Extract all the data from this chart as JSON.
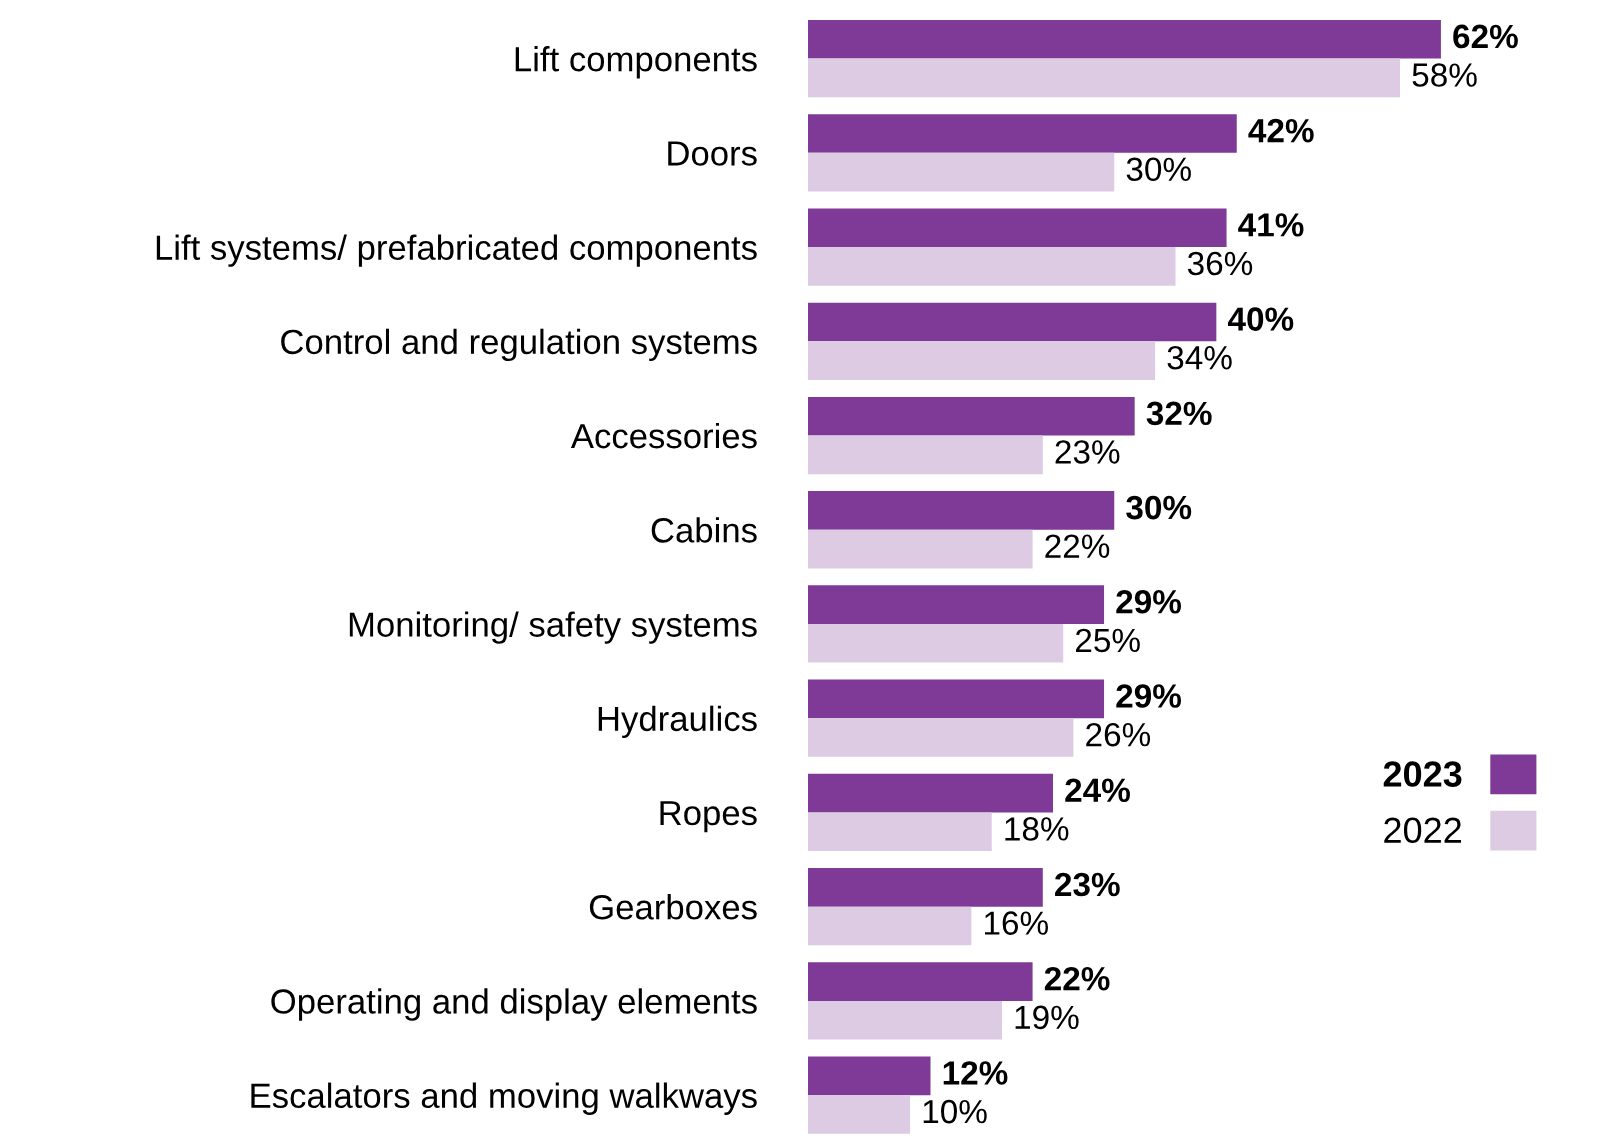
{
  "chart_data": {
    "type": "bar",
    "orientation": "horizontal",
    "categories": [
      "Lift components",
      "Doors",
      "Lift systems/ prefabricated components",
      "Control and regulation systems",
      "Accessories",
      "Cabins",
      "Monitoring/ safety systems",
      "Hydraulics",
      "Ropes",
      "Gearboxes",
      "Operating and display elements",
      "Escalators and moving walkways"
    ],
    "series": [
      {
        "name": "2023",
        "color": "#7e3a96",
        "values": [
          62,
          42,
          41,
          40,
          32,
          30,
          29,
          29,
          24,
          23,
          22,
          12
        ],
        "value_labels": [
          "62%",
          "42%",
          "41%",
          "40%",
          "32%",
          "30%",
          "29%",
          "29%",
          "24%",
          "23%",
          "22%",
          "12%"
        ]
      },
      {
        "name": "2022",
        "color": "#dccbe3",
        "values": [
          58,
          30,
          36,
          34,
          23,
          22,
          25,
          26,
          18,
          16,
          19,
          10
        ],
        "value_labels": [
          "58%",
          "30%",
          "36%",
          "34%",
          "23%",
          "22%",
          "25%",
          "26%",
          "18%",
          "16%",
          "19%",
          "10%"
        ]
      }
    ],
    "legend": "right",
    "grid": false
  }
}
